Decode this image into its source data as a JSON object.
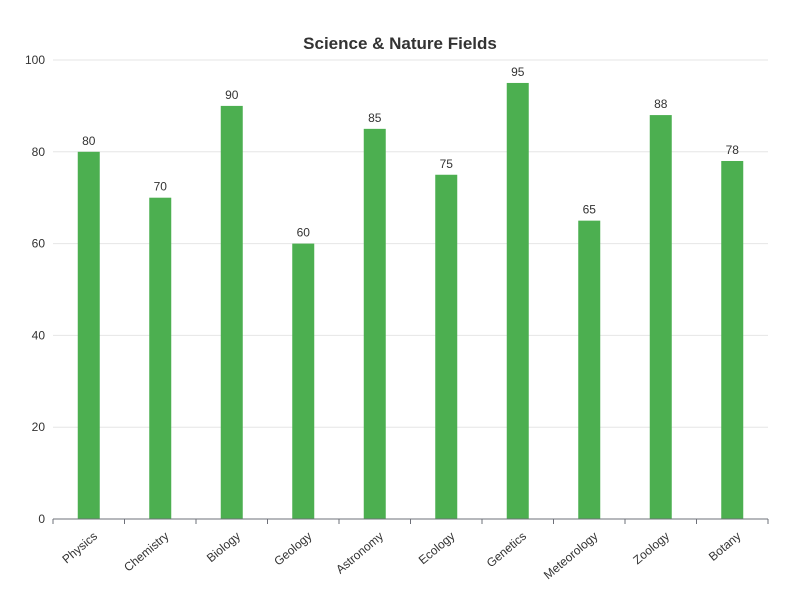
{
  "chart_data": {
    "type": "bar",
    "title": "Science & Nature Fields",
    "categories": [
      "Physics",
      "Chemistry",
      "Biology",
      "Geology",
      "Astronomy",
      "Ecology",
      "Genetics",
      "Meteorology",
      "Zoology",
      "Botany"
    ],
    "values": [
      80,
      70,
      90,
      60,
      85,
      75,
      95,
      65,
      88,
      78
    ],
    "ylim": [
      0,
      100
    ],
    "yticks": [
      0,
      20,
      40,
      60,
      80,
      100
    ],
    "xlabel": "",
    "ylabel": "",
    "grid": true,
    "legend": "none",
    "bar_color": "#4caf50"
  }
}
